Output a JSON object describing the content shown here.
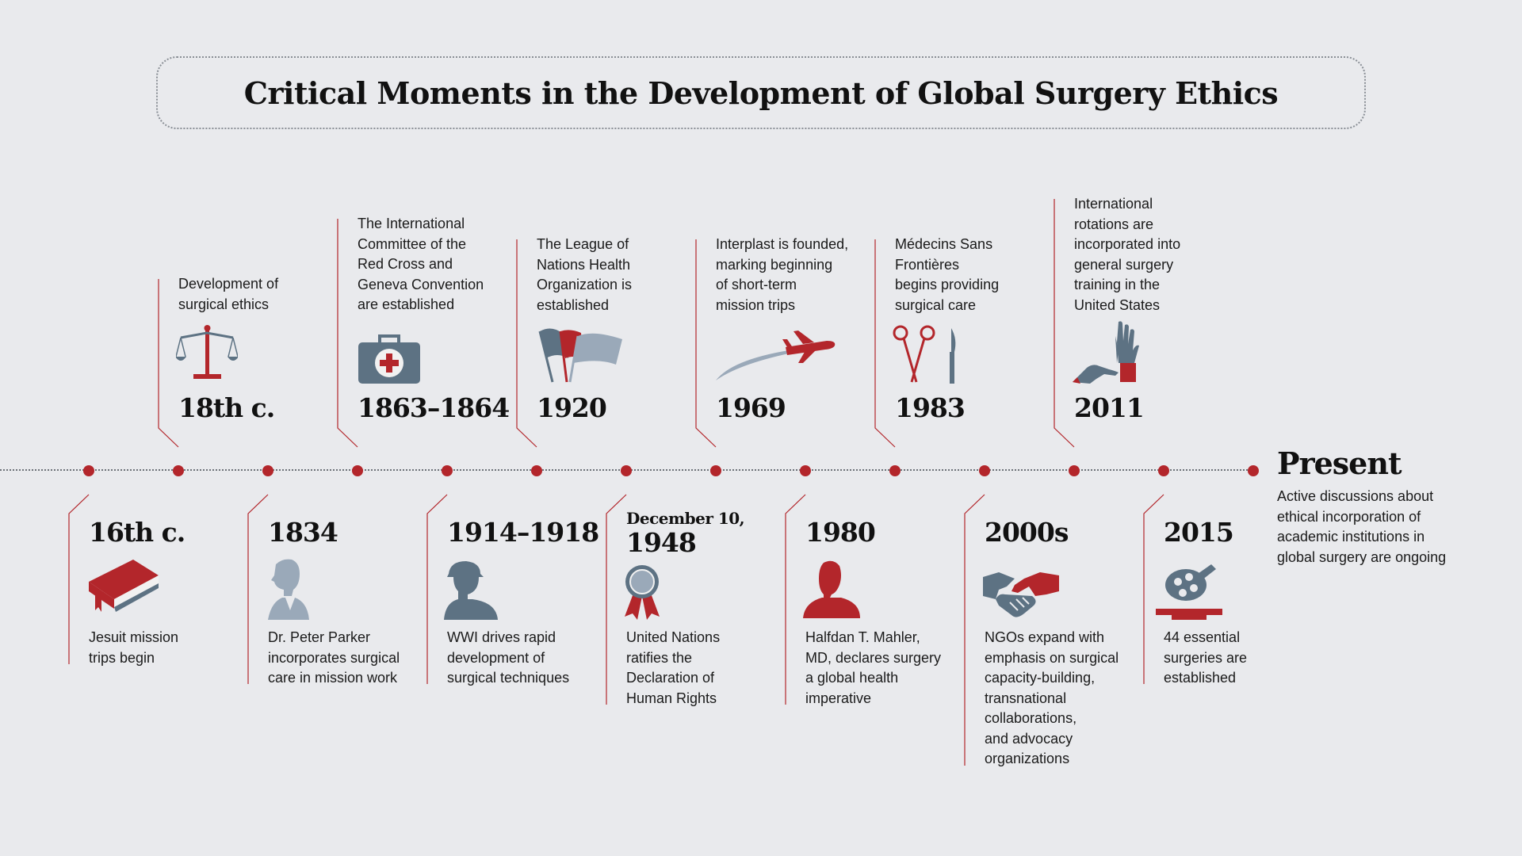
{
  "title": "Critical Moments in the Development of Global Surgery Ethics",
  "colors": {
    "red": "#b3262b",
    "slate": "#5d7283",
    "light_slate": "#9aa9b9",
    "background": "#e9eaed"
  },
  "events_top": [
    {
      "year": "18th c.",
      "text": "Development of\nsurgical ethics",
      "icon": "scales-icon"
    },
    {
      "year": "1863–1864",
      "text": "The International\nCommittee of the\nRed Cross and\nGeneva Convention\nare established",
      "icon": "first-aid-kit-icon"
    },
    {
      "year": "1920",
      "text": "The League of\nNations Health\nOrganization is\nestablished",
      "icon": "flags-icon"
    },
    {
      "year": "1969",
      "text": "Interplast is founded,\nmarking beginning\nof short-term\nmission trips",
      "icon": "airplane-icon"
    },
    {
      "year": "1983",
      "text": "Médecins Sans\nFrontières\nbegins providing\nsurgical care",
      "icon": "surgical-tools-icon"
    },
    {
      "year": "2011",
      "text": "International\nrotations are\nincorporated into\ngeneral surgery\ntraining in the\nUnited States",
      "icon": "glove-icon"
    }
  ],
  "events_bottom": [
    {
      "year": "16th c.",
      "text": "Jesuit mission\ntrips begin",
      "icon": "book-icon"
    },
    {
      "year": "1834",
      "text": "Dr. Peter Parker\nincorporates surgical\ncare in mission work",
      "icon": "portrait-icon"
    },
    {
      "year": "1914–1918",
      "text": "WWI drives rapid\ndevelopment of\nsurgical techniques",
      "icon": "soldier-icon"
    },
    {
      "year_line1": "December 10,",
      "year": "1948",
      "text": "United Nations\nratifies the\nDeclaration of\nHuman Rights",
      "icon": "ribbon-award-icon"
    },
    {
      "year": "1980",
      "text": "Halfdan T. Mahler,\nMD, declares surgery\na global health\nimperative",
      "icon": "person-bust-icon"
    },
    {
      "year": "2000s",
      "text": "NGOs expand with\nemphasis on surgical\ncapacity-building,\ntransnational\ncollaborations,\nand advocacy\norganizations",
      "icon": "handshake-icon"
    },
    {
      "year": "2015",
      "text": "44 essential\nsurgeries are\nestablished",
      "icon": "surgical-lamp-icon"
    }
  ],
  "present": {
    "label": "Present",
    "text": "Active discussions about\nethical incorporation of\nacademic institutions in\nglobal surgery are ongoing"
  }
}
